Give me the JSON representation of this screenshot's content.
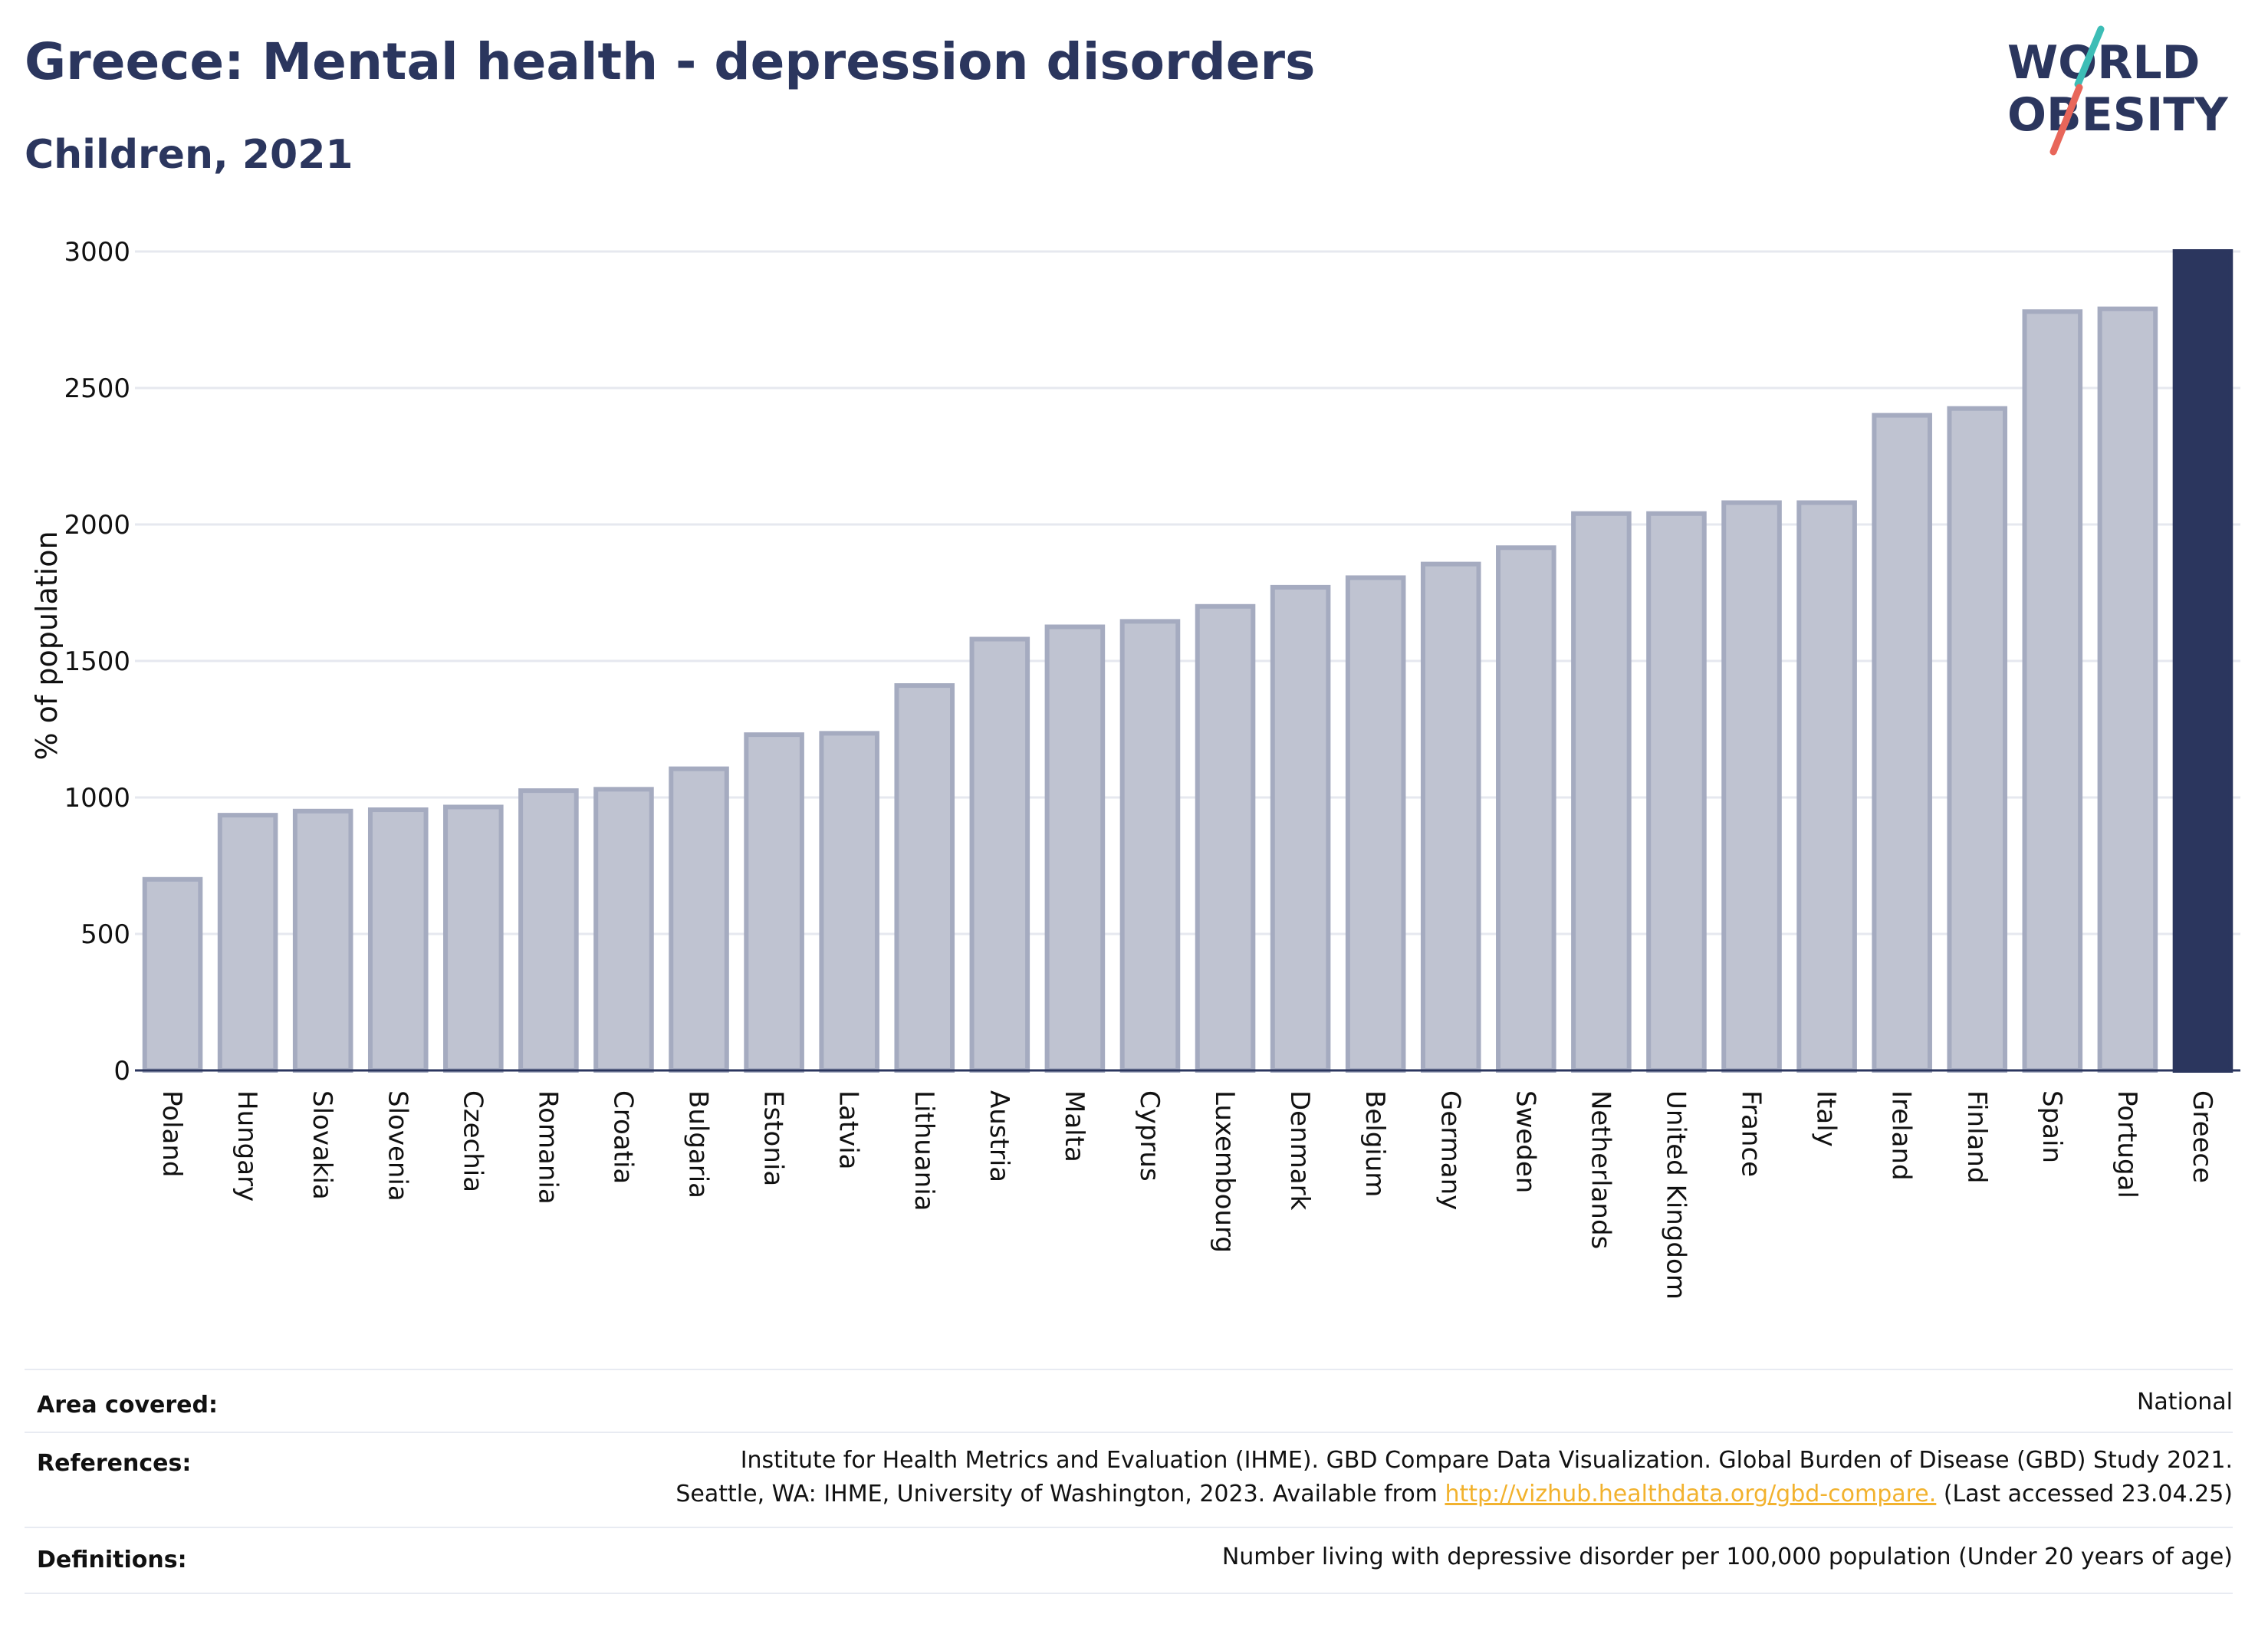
{
  "header": {
    "title": "Greece: Mental health - depression disorders",
    "subtitle": "Children, 2021"
  },
  "logo": {
    "line1": "WORLD",
    "line2": "OBESITY",
    "text_color": "#2b365e",
    "slash_teal": "#3dbdb6",
    "slash_coral": "#e8665a"
  },
  "chart_data": {
    "type": "bar",
    "ylabel": "% of population",
    "xlabel": "",
    "ylim": [
      0,
      3000
    ],
    "yticks": [
      0,
      500,
      1000,
      1500,
      2000,
      2500,
      3000
    ],
    "grid": true,
    "categories": [
      "Poland",
      "Hungary",
      "Slovakia",
      "Slovenia",
      "Czechia",
      "Romania",
      "Croatia",
      "Bulgaria",
      "Estonia",
      "Latvia",
      "Lithuania",
      "Austria",
      "Malta",
      "Cyprus",
      "Luxembourg",
      "Denmark",
      "Belgium",
      "Germany",
      "Sweden",
      "Netherlands",
      "United Kingdom",
      "France",
      "Italy",
      "Ireland",
      "Finland",
      "Spain",
      "Portugal",
      "Greece"
    ],
    "values": [
      700,
      935,
      950,
      955,
      965,
      1025,
      1030,
      1105,
      1230,
      1235,
      1410,
      1580,
      1625,
      1645,
      1700,
      1770,
      1805,
      1855,
      1915,
      2040,
      2040,
      2080,
      2080,
      2400,
      2425,
      2780,
      2790,
      3000
    ],
    "highlight": "Greece",
    "colors": {
      "bar_fill": "#bfc3d1",
      "bar_stroke": "#a5abc0",
      "highlight": "#2b365e",
      "grid": "#e6e8ef",
      "axis": "#2b365e"
    }
  },
  "footer": {
    "area_label": "Area covered:",
    "area_value": "National",
    "references_label": "References:",
    "references_line1": "Institute for Health Metrics and Evaluation (IHME). GBD Compare Data Visualization. Global Burden of Disease (GBD) Study 2021.",
    "references_line2_prefix": "Seattle, WA: IHME, University of Washington, 2023. Available from ",
    "references_link": "http://vizhub.healthdata.org/gbd-compare.",
    "references_line2_suffix": " (Last accessed 23.04.25)",
    "definitions_label": "Definitions:",
    "definitions_value": "Number living with depressive disorder per 100,000 population (Under 20 years of age)"
  }
}
